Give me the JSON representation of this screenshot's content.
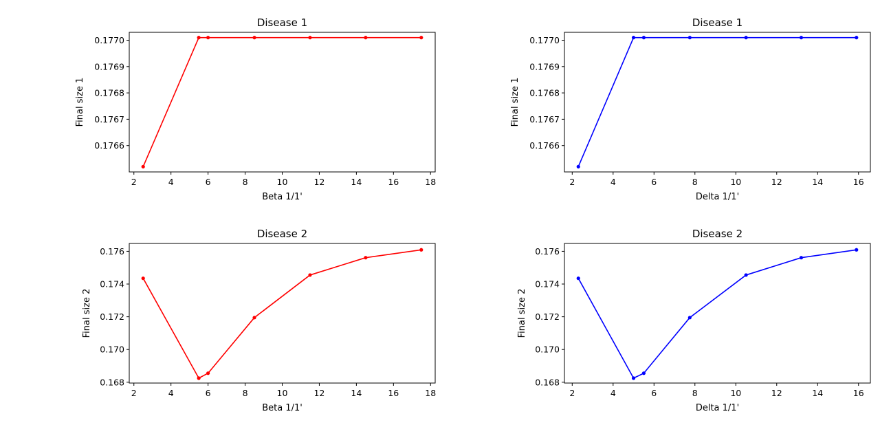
{
  "chart_data": [
    {
      "type": "line",
      "title": "Disease 1",
      "xlabel": "Beta 1/1'",
      "ylabel": "Final size 1",
      "color": "#ff0000",
      "x": [
        2.5,
        5.5,
        6.0,
        8.5,
        11.5,
        14.5,
        17.5
      ],
      "y": [
        0.17652,
        0.17701,
        0.17701,
        0.17701,
        0.17701,
        0.17701,
        0.17701
      ],
      "xlim": [
        1.75,
        18.25
      ],
      "ylim": [
        0.1765,
        0.17703
      ],
      "xticks": [
        2,
        4,
        6,
        8,
        10,
        12,
        14,
        16,
        18
      ],
      "yticks": [
        0.1766,
        0.1767,
        0.1768,
        0.1769,
        0.177
      ],
      "ytick_labels": [
        "0.1766",
        "0.1767",
        "0.1768",
        "0.1769",
        "0.1770"
      ],
      "grid": false
    },
    {
      "type": "line",
      "title": "Disease 1",
      "xlabel": "Delta 1/1'",
      "ylabel": "Final size 1",
      "color": "#0000ff",
      "x": [
        2.3,
        5.0,
        5.5,
        7.75,
        10.5,
        13.2,
        15.9
      ],
      "y": [
        0.17652,
        0.17701,
        0.17701,
        0.17701,
        0.17701,
        0.17701,
        0.17701
      ],
      "xlim": [
        1.62,
        16.58
      ],
      "ylim": [
        0.1765,
        0.17703
      ],
      "xticks": [
        2,
        4,
        6,
        8,
        10,
        12,
        14,
        16
      ],
      "yticks": [
        0.1766,
        0.1767,
        0.1768,
        0.1769,
        0.177
      ],
      "ytick_labels": [
        "0.1766",
        "0.1767",
        "0.1768",
        "0.1769",
        "0.1770"
      ],
      "grid": false
    },
    {
      "type": "line",
      "title": "Disease 2",
      "xlabel": "Beta 1/1'",
      "ylabel": "Final size 2",
      "color": "#ff0000",
      "x": [
        2.5,
        5.5,
        6.0,
        8.5,
        11.5,
        14.5,
        17.5
      ],
      "y": [
        0.17435,
        0.16825,
        0.16855,
        0.17195,
        0.17455,
        0.17561,
        0.17609
      ],
      "xlim": [
        1.75,
        18.25
      ],
      "ylim": [
        0.16795,
        0.17648
      ],
      "xticks": [
        2,
        4,
        6,
        8,
        10,
        12,
        14,
        16,
        18
      ],
      "yticks": [
        0.168,
        0.17,
        0.172,
        0.174,
        0.176
      ],
      "ytick_labels": [
        "0.168",
        "0.170",
        "0.172",
        "0.174",
        "0.176"
      ],
      "grid": false
    },
    {
      "type": "line",
      "title": "Disease 2",
      "xlabel": "Delta 1/1'",
      "ylabel": "Final size 2",
      "color": "#0000ff",
      "x": [
        2.3,
        5.0,
        5.5,
        7.75,
        10.5,
        13.2,
        15.9
      ],
      "y": [
        0.17435,
        0.16825,
        0.16855,
        0.17195,
        0.17455,
        0.17561,
        0.17609
      ],
      "xlim": [
        1.62,
        16.58
      ],
      "ylim": [
        0.16795,
        0.17648
      ],
      "xticks": [
        2,
        4,
        6,
        8,
        10,
        12,
        14,
        16
      ],
      "yticks": [
        0.168,
        0.17,
        0.172,
        0.174,
        0.176
      ],
      "ytick_labels": [
        "0.168",
        "0.170",
        "0.172",
        "0.174",
        "0.176"
      ],
      "grid": false
    }
  ]
}
